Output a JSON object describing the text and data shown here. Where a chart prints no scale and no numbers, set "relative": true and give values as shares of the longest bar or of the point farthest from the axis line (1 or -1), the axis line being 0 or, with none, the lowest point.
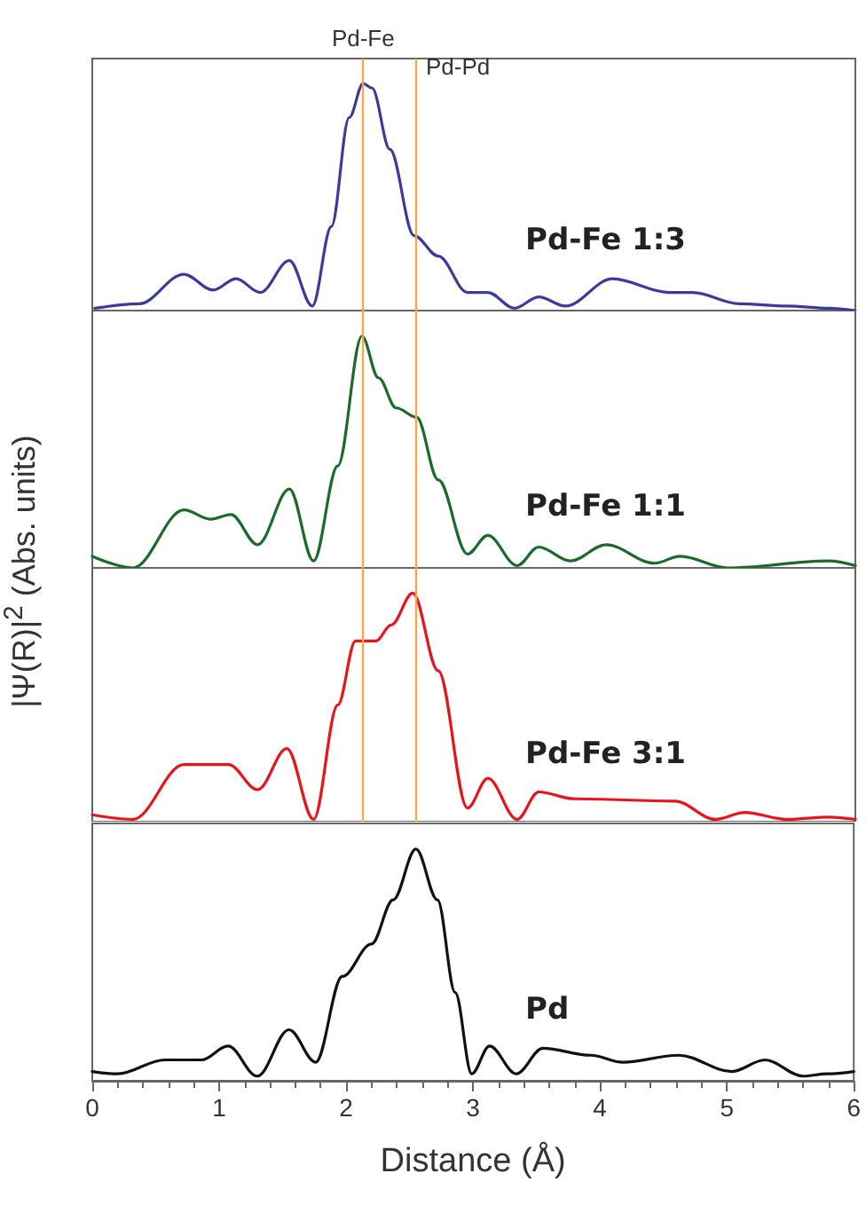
{
  "chart_data": [
    {
      "type": "line",
      "relative": true,
      "xlim": [
        0,
        6
      ],
      "xticks": [
        0,
        1,
        2,
        3,
        4,
        5,
        6
      ],
      "tick_labels": false,
      "marker": "none",
      "line_style": "solid",
      "grid": false,
      "legend": false,
      "ylabel": "|Ψ(R)|$^{2}$ (Abs. units)",
      "ref_lines": [
        {
          "axis": "x",
          "value": 2.13,
          "label": "Pd-Fe",
          "color": "#f7a94a"
        },
        {
          "axis": "x",
          "value": 2.54,
          "label": "Pd-Pd",
          "color": "#f7a94a"
        }
      ],
      "series": [
        {
          "name": "Pd-Fe 1:3",
          "color": "#3b3b9a",
          "x": [
            0.02,
            0.37,
            0.72,
            0.95,
            1.13,
            1.32,
            1.55,
            1.73,
            1.88,
            2.02,
            2.13,
            2.2,
            2.34,
            2.53,
            2.72,
            2.95,
            3.11,
            3.32,
            3.51,
            3.72,
            4.09,
            4.53,
            4.72,
            5.09,
            5.46,
            5.79,
            6.0
          ],
          "values": [
            0.01,
            0.03,
            0.16,
            0.09,
            0.14,
            0.08,
            0.22,
            0.02,
            0.37,
            0.85,
            1.0,
            0.98,
            0.71,
            0.33,
            0.24,
            0.08,
            0.08,
            0.01,
            0.06,
            0.02,
            0.14,
            0.08,
            0.08,
            0.03,
            0.02,
            0.01,
            0
          ]
        }
      ]
    },
    {
      "type": "line",
      "relative": true,
      "xlim": [
        0,
        6
      ],
      "xticks": [
        0,
        1,
        2,
        3,
        4,
        5,
        6
      ],
      "tick_labels": false,
      "marker": "none",
      "line_style": "solid",
      "grid": false,
      "legend": false,
      "ref_lines": [
        {
          "axis": "x",
          "value": 2.13,
          "label": null,
          "color": "#f7a94a"
        },
        {
          "axis": "x",
          "value": 2.54,
          "label": null,
          "color": "#f7a94a"
        }
      ],
      "series": [
        {
          "name": "Pd-Fe 1:1",
          "color": "#1a6b2a",
          "x": [
            0,
            0.32,
            0.72,
            0.93,
            1.09,
            1.3,
            1.55,
            1.74,
            1.93,
            2.12,
            2.25,
            2.39,
            2.55,
            2.72,
            2.95,
            3.11,
            3.34,
            3.51,
            3.76,
            4.04,
            4.42,
            4.62,
            5.0,
            5.79,
            6.0
          ],
          "values": [
            0.05,
            0,
            0.25,
            0.21,
            0.23,
            0.1,
            0.34,
            0.03,
            0.44,
            1.0,
            0.82,
            0.69,
            0.65,
            0.38,
            0.06,
            0.14,
            0.01,
            0.09,
            0.03,
            0.1,
            0.02,
            0.05,
            0,
            0.03,
            0.01
          ]
        }
      ]
    },
    {
      "type": "line",
      "relative": true,
      "xlim": [
        0,
        6
      ],
      "xticks": [
        0,
        1,
        2,
        3,
        4,
        5,
        6
      ],
      "tick_labels": false,
      "marker": "none",
      "line_style": "solid",
      "grid": false,
      "legend": false,
      "ref_lines": [
        {
          "axis": "x",
          "value": 2.13,
          "label": null,
          "color": "#f7a94a"
        },
        {
          "axis": "x",
          "value": 2.54,
          "label": null,
          "color": "#f7a94a"
        }
      ],
      "series": [
        {
          "name": "Pd-Fe 3:1",
          "color": "#e8141c",
          "x": [
            0,
            0.32,
            0.72,
            1.07,
            1.3,
            1.53,
            1.74,
            1.93,
            2.07,
            2.23,
            2.35,
            2.52,
            2.72,
            2.95,
            3.11,
            3.34,
            3.51,
            3.79,
            4.58,
            4.9,
            5.13,
            5.46,
            5.79,
            6.0
          ],
          "values": [
            0.03,
            0.01,
            0.25,
            0.25,
            0.14,
            0.32,
            0.01,
            0.51,
            0.79,
            0.79,
            0.86,
            1.0,
            0.66,
            0.06,
            0.19,
            0.01,
            0.13,
            0.1,
            0.09,
            0.01,
            0.04,
            0.01,
            0.02,
            0.01
          ]
        }
      ]
    },
    {
      "type": "line",
      "relative": true,
      "xlim": [
        0,
        6
      ],
      "xticks": [
        0,
        1,
        2,
        3,
        4,
        5,
        6
      ],
      "tick_labels": "x",
      "marker": "none",
      "line_style": "solid",
      "grid": false,
      "legend": false,
      "xlabel": "Distance (Å)",
      "series": [
        {
          "name": "Pd",
          "color": "#111111",
          "x": [
            0,
            0.2,
            0.57,
            0.86,
            1.07,
            1.3,
            1.55,
            1.76,
            1.97,
            2.2,
            2.37,
            2.55,
            2.72,
            2.86,
            2.99,
            3.13,
            3.34,
            3.55,
            3.93,
            4.18,
            4.62,
            5.04,
            5.3,
            5.6,
            5.79,
            6.0
          ],
          "values": [
            0.04,
            0.03,
            0.09,
            0.09,
            0.15,
            0.02,
            0.22,
            0.08,
            0.45,
            0.59,
            0.78,
            1.0,
            0.78,
            0.38,
            0.03,
            0.15,
            0.03,
            0.14,
            0.11,
            0.08,
            0.11,
            0.04,
            0.09,
            0.02,
            0.03,
            0.04
          ]
        }
      ]
    }
  ]
}
